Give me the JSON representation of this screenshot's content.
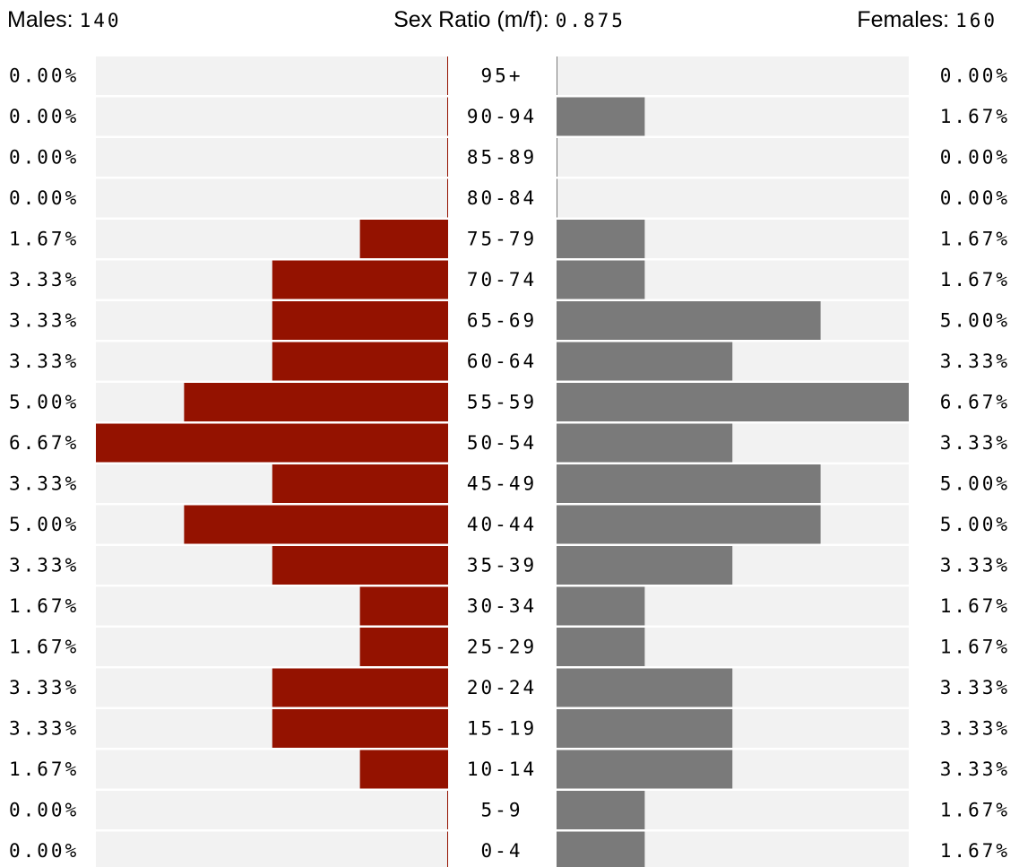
{
  "header": {
    "males_label": "Males:",
    "males_value": "140",
    "ratio_label": "Sex Ratio (m/f):",
    "ratio_value": "0.875",
    "females_label": "Females:",
    "females_value": "160"
  },
  "colors": {
    "male_bar": "#941200",
    "female_bar": "#7a7a7a",
    "track": "#f2f2f2"
  },
  "chart_data": {
    "type": "bar",
    "orientation": "horizontal-pyramid",
    "categories": [
      "95+",
      "90-94",
      "85-89",
      "80-84",
      "75-79",
      "70-74",
      "65-69",
      "60-64",
      "55-59",
      "50-54",
      "45-49",
      "40-44",
      "35-39",
      "30-34",
      "25-29",
      "20-24",
      "15-19",
      "10-14",
      "5-9",
      "0-4"
    ],
    "series": [
      {
        "name": "Males",
        "values": [
          0.0,
          0.0,
          0.0,
          0.0,
          1.67,
          3.33,
          3.33,
          3.33,
          5.0,
          6.67,
          3.33,
          5.0,
          3.33,
          1.67,
          1.67,
          3.33,
          3.33,
          1.67,
          0.0,
          0.0
        ],
        "labels": [
          "0.00%",
          "0.00%",
          "0.00%",
          "0.00%",
          "1.67%",
          "3.33%",
          "3.33%",
          "3.33%",
          "5.00%",
          "6.67%",
          "3.33%",
          "5.00%",
          "3.33%",
          "1.67%",
          "1.67%",
          "3.33%",
          "3.33%",
          "1.67%",
          "0.00%",
          "0.00%"
        ]
      },
      {
        "name": "Females",
        "values": [
          0.0,
          1.67,
          0.0,
          0.0,
          1.67,
          1.67,
          5.0,
          3.33,
          6.67,
          3.33,
          5.0,
          5.0,
          3.33,
          1.67,
          1.67,
          3.33,
          3.33,
          3.33,
          1.67,
          1.67
        ],
        "labels": [
          "0.00%",
          "1.67%",
          "0.00%",
          "0.00%",
          "1.67%",
          "1.67%",
          "5.00%",
          "3.33%",
          "6.67%",
          "3.33%",
          "5.00%",
          "5.00%",
          "3.33%",
          "1.67%",
          "1.67%",
          "3.33%",
          "3.33%",
          "3.33%",
          "1.67%",
          "1.67%"
        ]
      }
    ],
    "xlim": [
      0,
      6.67
    ],
    "unit": "%"
  }
}
